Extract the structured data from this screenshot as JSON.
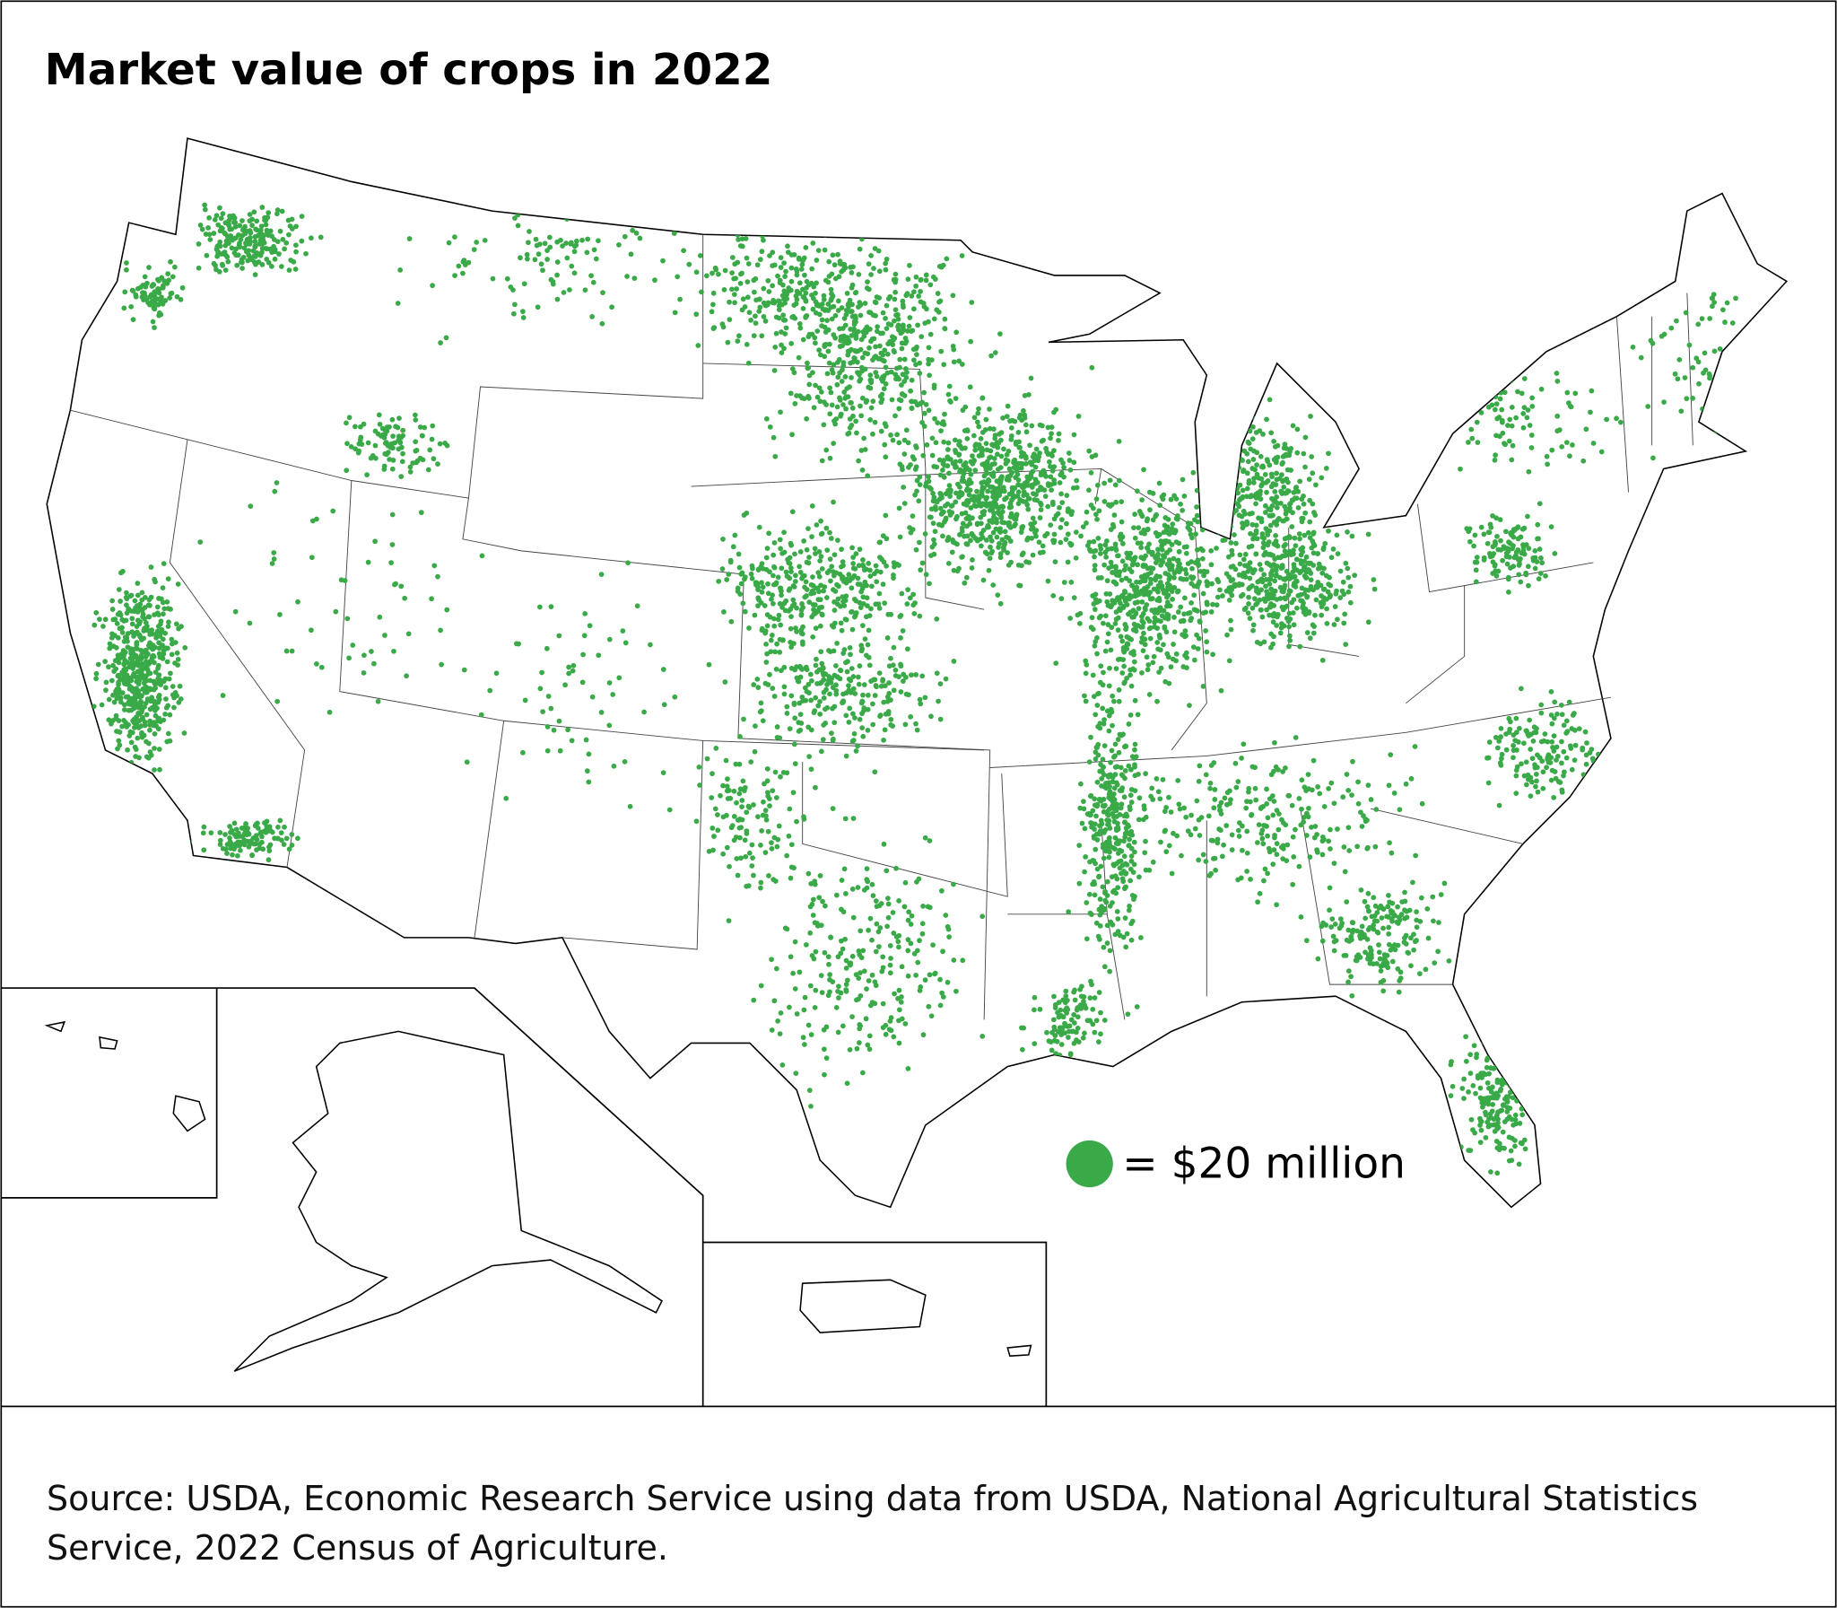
{
  "title": "Market value of crops in 2022",
  "legend": {
    "label": "= $20 million",
    "color": "#3aaa48"
  },
  "source": "Source: USDA, Economic Research Service using data from USDA, National Agricultural Statistics Service, 2022 Census of Agriculture."
}
